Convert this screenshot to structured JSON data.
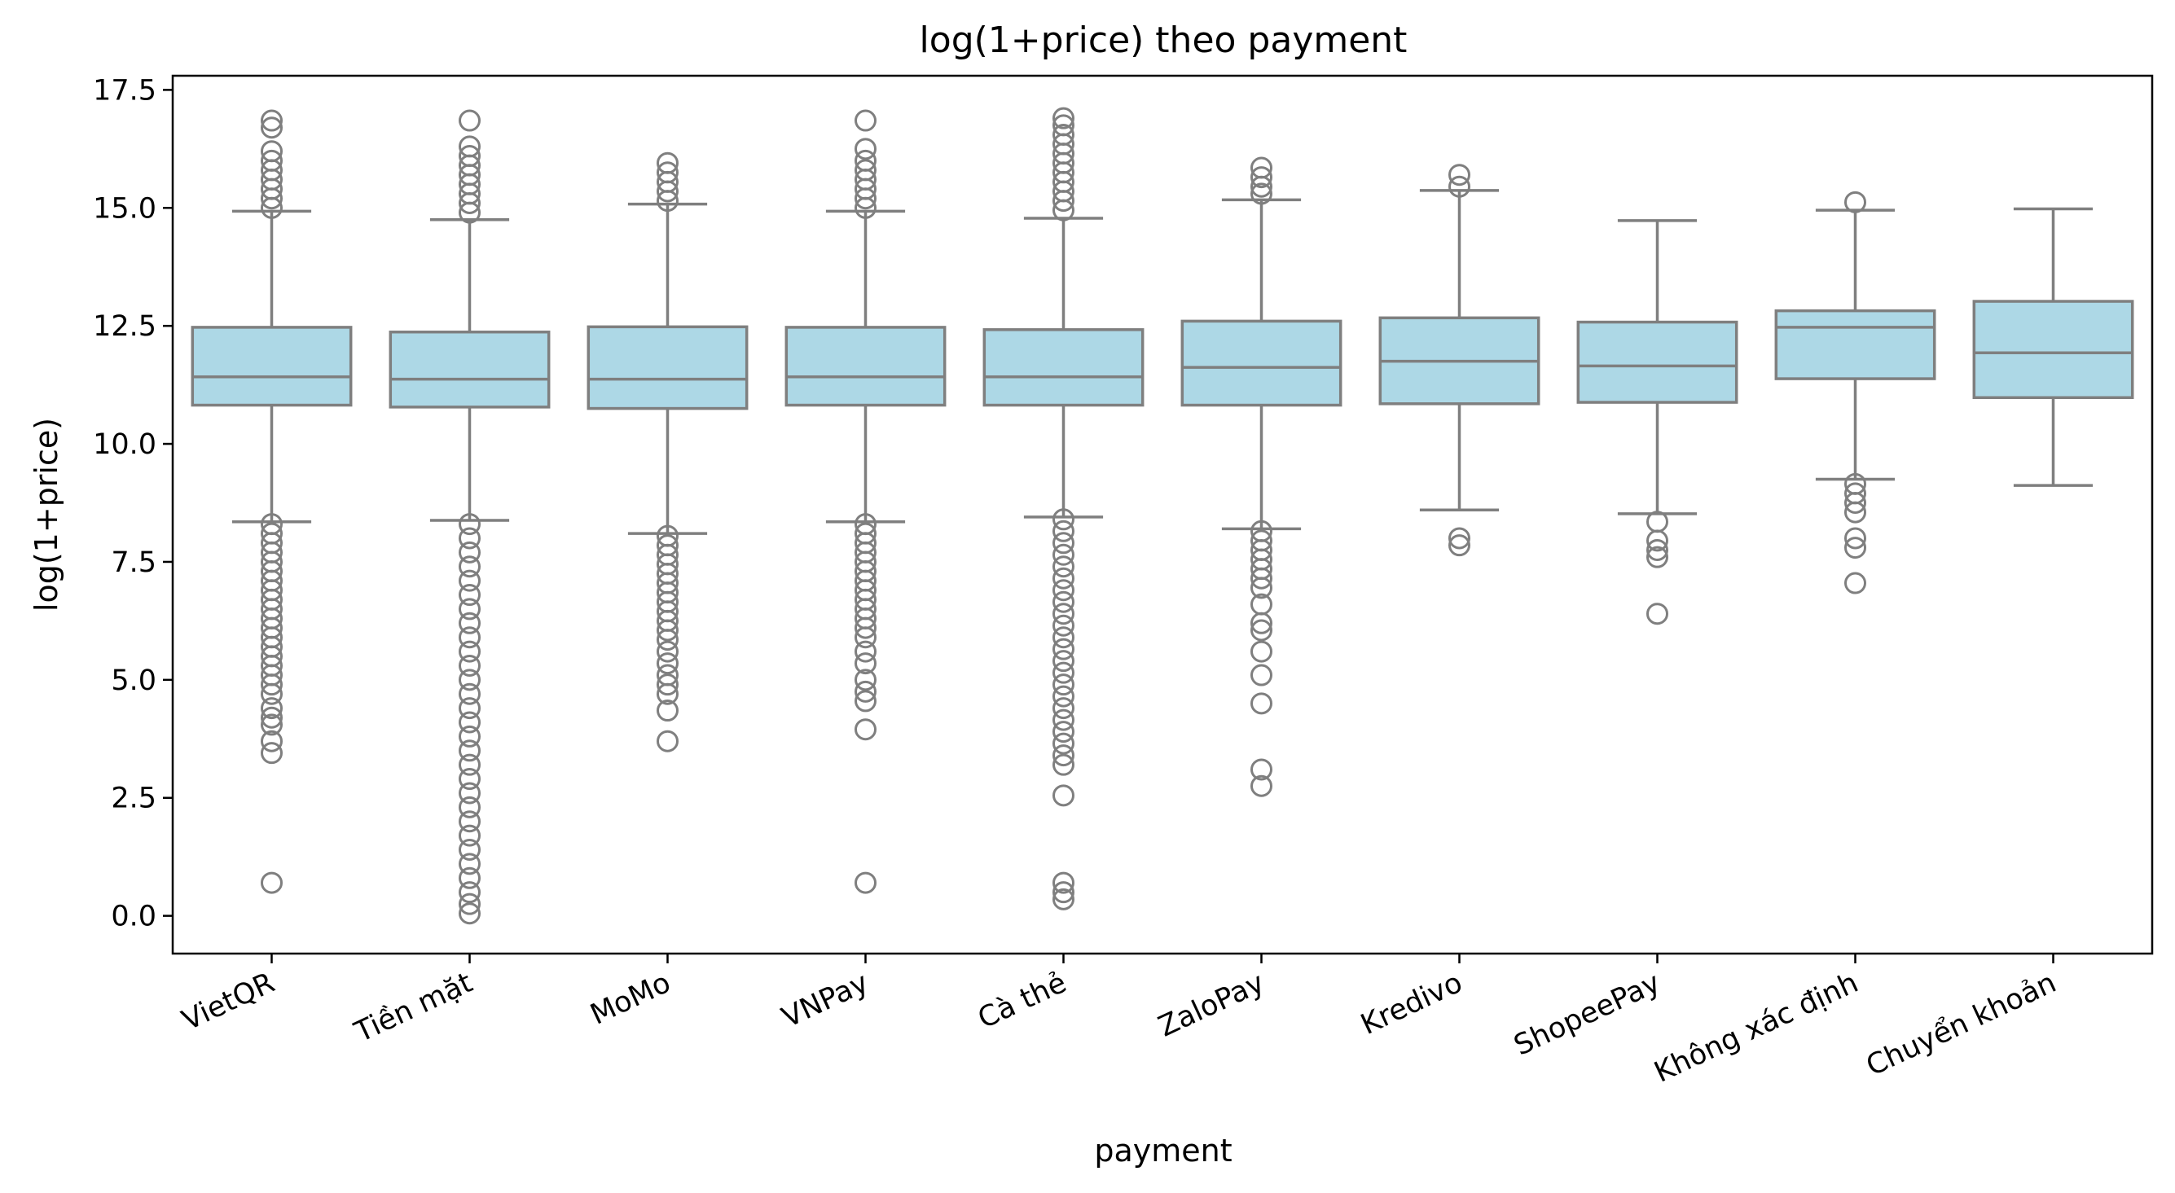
{
  "chart_data": {
    "type": "box",
    "title": "log(1+price) theo payment",
    "xlabel": "payment",
    "ylabel": "log(1+price)",
    "ylim": [
      -0.8,
      17.8
    ],
    "yticks": [
      0.0,
      2.5,
      5.0,
      7.5,
      10.0,
      12.5,
      15.0,
      17.5
    ],
    "ytick_labels": [
      "0.0",
      "2.5",
      "5.0",
      "7.5",
      "10.0",
      "12.5",
      "15.0",
      "17.5"
    ],
    "grid": false,
    "box_color": "#add8e6",
    "line_color": "#7f7f7f",
    "categories": [
      "VietQR",
      "Tiền mặt",
      "MoMo",
      "VNPay",
      "Cà thẻ",
      "ZaloPay",
      "Kredivo",
      "ShopeePay",
      "Không xác định",
      "Chuyển khoản"
    ],
    "boxes": [
      {
        "category": "VietQR",
        "whislo": 8.35,
        "q1": 10.82,
        "med": 11.42,
        "q3": 12.47,
        "whishi": 14.93,
        "fliers": [
          16.85,
          16.7,
          16.2,
          16.0,
          15.8,
          15.6,
          15.4,
          15.2,
          15.0,
          8.3,
          8.1,
          7.9,
          7.7,
          7.5,
          7.3,
          7.1,
          6.9,
          6.7,
          6.5,
          6.3,
          6.1,
          5.9,
          5.7,
          5.5,
          5.3,
          5.1,
          4.9,
          4.7,
          4.4,
          4.2,
          4.05,
          3.7,
          3.45,
          0.7
        ]
      },
      {
        "category": "Tiền mặt",
        "whislo": 8.38,
        "q1": 10.78,
        "med": 11.37,
        "q3": 12.37,
        "whishi": 14.75,
        "fliers": [
          16.85,
          16.3,
          16.1,
          15.9,
          15.7,
          15.5,
          15.3,
          15.1,
          14.9,
          8.3,
          8.0,
          7.7,
          7.4,
          7.1,
          6.8,
          6.5,
          6.2,
          5.9,
          5.6,
          5.3,
          5.0,
          4.7,
          4.4,
          4.1,
          3.8,
          3.5,
          3.2,
          2.9,
          2.6,
          2.3,
          2.0,
          1.7,
          1.4,
          1.1,
          0.8,
          0.5,
          0.25,
          0.05
        ]
      },
      {
        "category": "MoMo",
        "whislo": 8.1,
        "q1": 10.75,
        "med": 11.37,
        "q3": 12.48,
        "whishi": 15.08,
        "fliers": [
          15.95,
          15.75,
          15.55,
          15.35,
          15.15,
          8.05,
          7.85,
          7.65,
          7.45,
          7.25,
          7.05,
          6.85,
          6.65,
          6.45,
          6.25,
          6.05,
          5.85,
          5.6,
          5.35,
          5.1,
          4.9,
          4.7,
          4.35,
          3.7
        ]
      },
      {
        "category": "VNPay",
        "whislo": 8.35,
        "q1": 10.82,
        "med": 11.42,
        "q3": 12.47,
        "whishi": 14.93,
        "fliers": [
          16.85,
          16.25,
          16.0,
          15.8,
          15.6,
          15.4,
          15.2,
          15.0,
          8.3,
          8.1,
          7.9,
          7.7,
          7.5,
          7.3,
          7.1,
          6.9,
          6.7,
          6.5,
          6.3,
          6.1,
          5.9,
          5.6,
          5.35,
          5.0,
          4.75,
          4.55,
          3.95,
          0.7
        ]
      },
      {
        "category": "Cà thẻ",
        "whislo": 8.45,
        "q1": 10.82,
        "med": 11.42,
        "q3": 12.42,
        "whishi": 14.78,
        "fliers": [
          16.9,
          16.75,
          16.55,
          16.35,
          16.15,
          15.95,
          15.75,
          15.55,
          15.35,
          15.15,
          14.95,
          8.4,
          8.15,
          7.9,
          7.65,
          7.4,
          7.15,
          6.9,
          6.65,
          6.4,
          6.15,
          5.9,
          5.65,
          5.4,
          5.15,
          4.9,
          4.65,
          4.4,
          4.15,
          3.9,
          3.65,
          3.4,
          3.2,
          2.55,
          0.7,
          0.5,
          0.35
        ]
      },
      {
        "category": "ZaloPay",
        "whislo": 8.2,
        "q1": 10.82,
        "med": 11.62,
        "q3": 12.6,
        "whishi": 15.17,
        "fliers": [
          15.85,
          15.65,
          15.45,
          15.3,
          8.15,
          7.95,
          7.75,
          7.55,
          7.35,
          7.15,
          6.95,
          6.6,
          6.2,
          6.05,
          5.6,
          5.1,
          4.5,
          3.1,
          2.75
        ]
      },
      {
        "category": "Kredivo",
        "whislo": 8.6,
        "q1": 10.85,
        "med": 11.75,
        "q3": 12.67,
        "whishi": 15.37,
        "fliers": [
          15.7,
          15.45,
          8.0,
          7.85
        ]
      },
      {
        "category": "ShopeePay",
        "whislo": 8.52,
        "q1": 10.88,
        "med": 11.65,
        "q3": 12.58,
        "whishi": 14.73,
        "fliers": [
          8.35,
          7.95,
          7.75,
          7.6,
          6.4
        ]
      },
      {
        "category": "Không xác định",
        "whislo": 9.25,
        "q1": 11.38,
        "med": 12.47,
        "q3": 12.82,
        "whishi": 14.95,
        "fliers": [
          15.12,
          9.15,
          8.95,
          8.75,
          8.55,
          8.0,
          7.8,
          7.05
        ]
      },
      {
        "category": "Chuyển khoản",
        "whislo": 9.12,
        "q1": 10.98,
        "med": 11.93,
        "q3": 13.02,
        "whishi": 14.98,
        "fliers": []
      }
    ]
  }
}
